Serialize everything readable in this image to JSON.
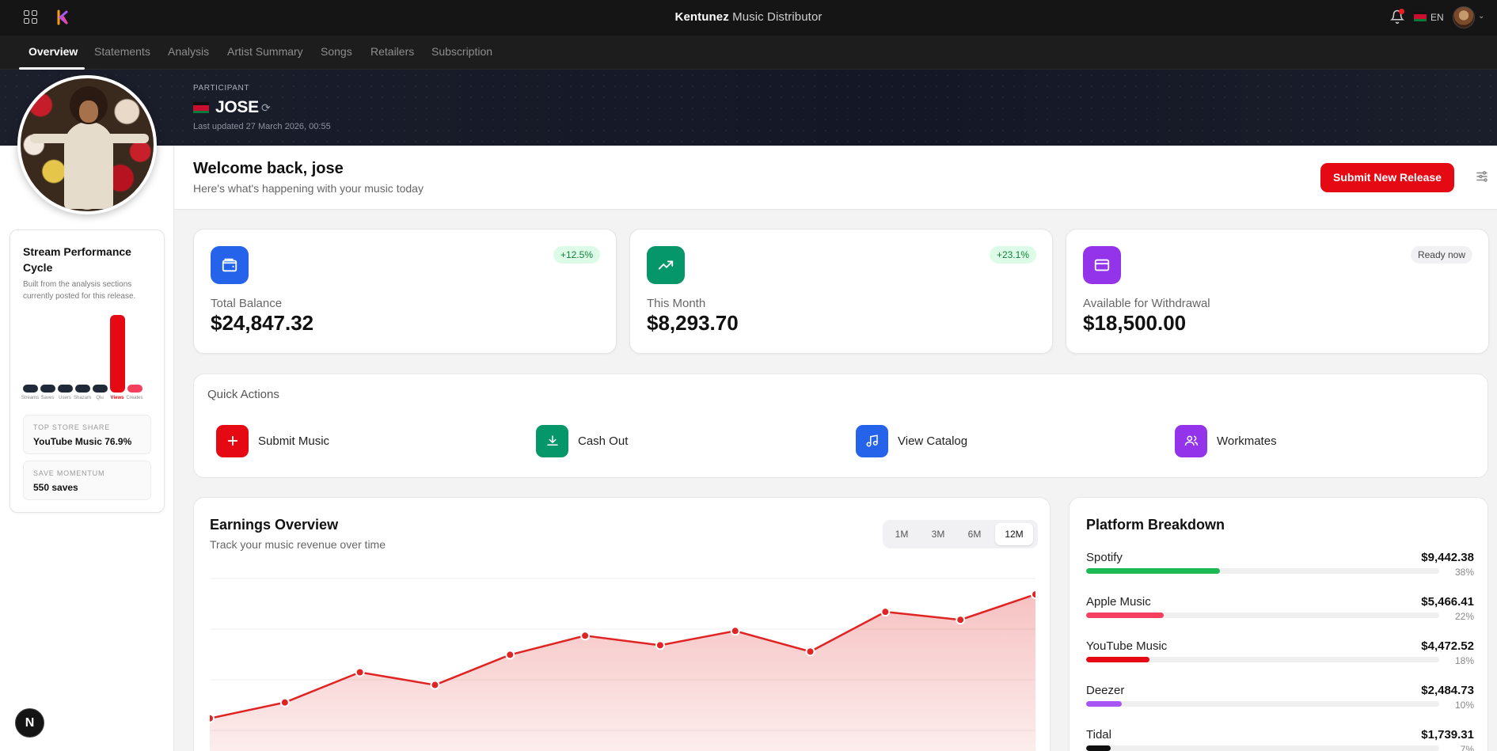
{
  "app": {
    "title_bold": "Kentunez",
    "title_rest": " Music Distributor",
    "language": "EN"
  },
  "nav": {
    "tabs": [
      "Overview",
      "Statements",
      "Analysis",
      "Artist Summary",
      "Songs",
      "Retailers",
      "Subscription"
    ],
    "active": "Overview"
  },
  "participant": {
    "label": "PARTICIPANT",
    "name": "JOSE",
    "updated": "Last updated 27 March 2026, 00:55"
  },
  "performance": {
    "title": "Stream Performance Cycle",
    "description": "Built from the analysis sections currently posted for this release.",
    "bars": [
      {
        "label": "Streams",
        "value": 0.08
      },
      {
        "label": "Saves",
        "value": 0.08
      },
      {
        "label": "Users",
        "value": 0.08
      },
      {
        "label": "Shazam",
        "value": 0.08
      },
      {
        "label": "Qlu",
        "value": 0.08
      },
      {
        "label": "Views",
        "value": 1.0,
        "highlight": true
      },
      {
        "label": "Creates",
        "value": 0.08,
        "accent": true
      }
    ],
    "top_store_label": "TOP STORE SHARE",
    "top_store_value": "YouTube Music 76.9%",
    "momentum_label": "SAVE MOMENTUM",
    "momentum_value": "550 saves"
  },
  "welcome": {
    "title": "Welcome back, jose",
    "subtitle": "Here's what's happening with your music today",
    "submit_label": "Submit New Release"
  },
  "stats": [
    {
      "label": "Total Balance",
      "value": "$24,847.32",
      "badge": "+12.5%",
      "icon": "wallet-icon"
    },
    {
      "label": "This Month",
      "value": "$8,293.70",
      "badge": "+23.1%",
      "icon": "trending-up-icon"
    },
    {
      "label": "Available for Withdrawal",
      "value": "$18,500.00",
      "badge": "Ready now",
      "icon": "credit-card-icon"
    }
  ],
  "quick_actions": {
    "title": "Quick Actions",
    "items": [
      {
        "label": "Submit Music",
        "icon": "plus-icon"
      },
      {
        "label": "Cash Out",
        "icon": "download-icon"
      },
      {
        "label": "View Catalog",
        "icon": "music-note-icon"
      },
      {
        "label": "Workmates",
        "icon": "users-icon"
      }
    ]
  },
  "earnings": {
    "title": "Earnings Overview",
    "subtitle": "Track your music revenue over time",
    "ranges": [
      "1M",
      "3M",
      "6M",
      "12M"
    ],
    "active_range": "12M"
  },
  "chart_data": {
    "type": "area",
    "title": "Earnings Overview",
    "values": [
      1.6,
      2.1,
      3.05,
      2.65,
      3.6,
      4.2,
      3.9,
      4.35,
      3.7,
      4.95,
      4.7,
      5.5
    ],
    "ylim": [
      0,
      6
    ],
    "grid": true,
    "color": "#e02424"
  },
  "platforms": {
    "title": "Platform Breakdown",
    "items": [
      {
        "name": "Spotify",
        "amount": "$9,442.38",
        "pct": "38%",
        "share": 0.38,
        "color": "#1db954"
      },
      {
        "name": "Apple Music",
        "amount": "$5,466.41",
        "pct": "22%",
        "share": 0.22,
        "color": "#f43f5e"
      },
      {
        "name": "YouTube Music",
        "amount": "$4,472.52",
        "pct": "18%",
        "share": 0.18,
        "color": "#e50914"
      },
      {
        "name": "Deezer",
        "amount": "$2,484.73",
        "pct": "10%",
        "share": 0.1,
        "color": "#a855f7"
      },
      {
        "name": "Tidal",
        "amount": "$1,739.31",
        "pct": "7%",
        "share": 0.07,
        "color": "#111111"
      }
    ]
  },
  "colors": {
    "brand_red": "#e50914",
    "blue": "#2563eb",
    "green": "#059669",
    "purple": "#9333ea"
  }
}
